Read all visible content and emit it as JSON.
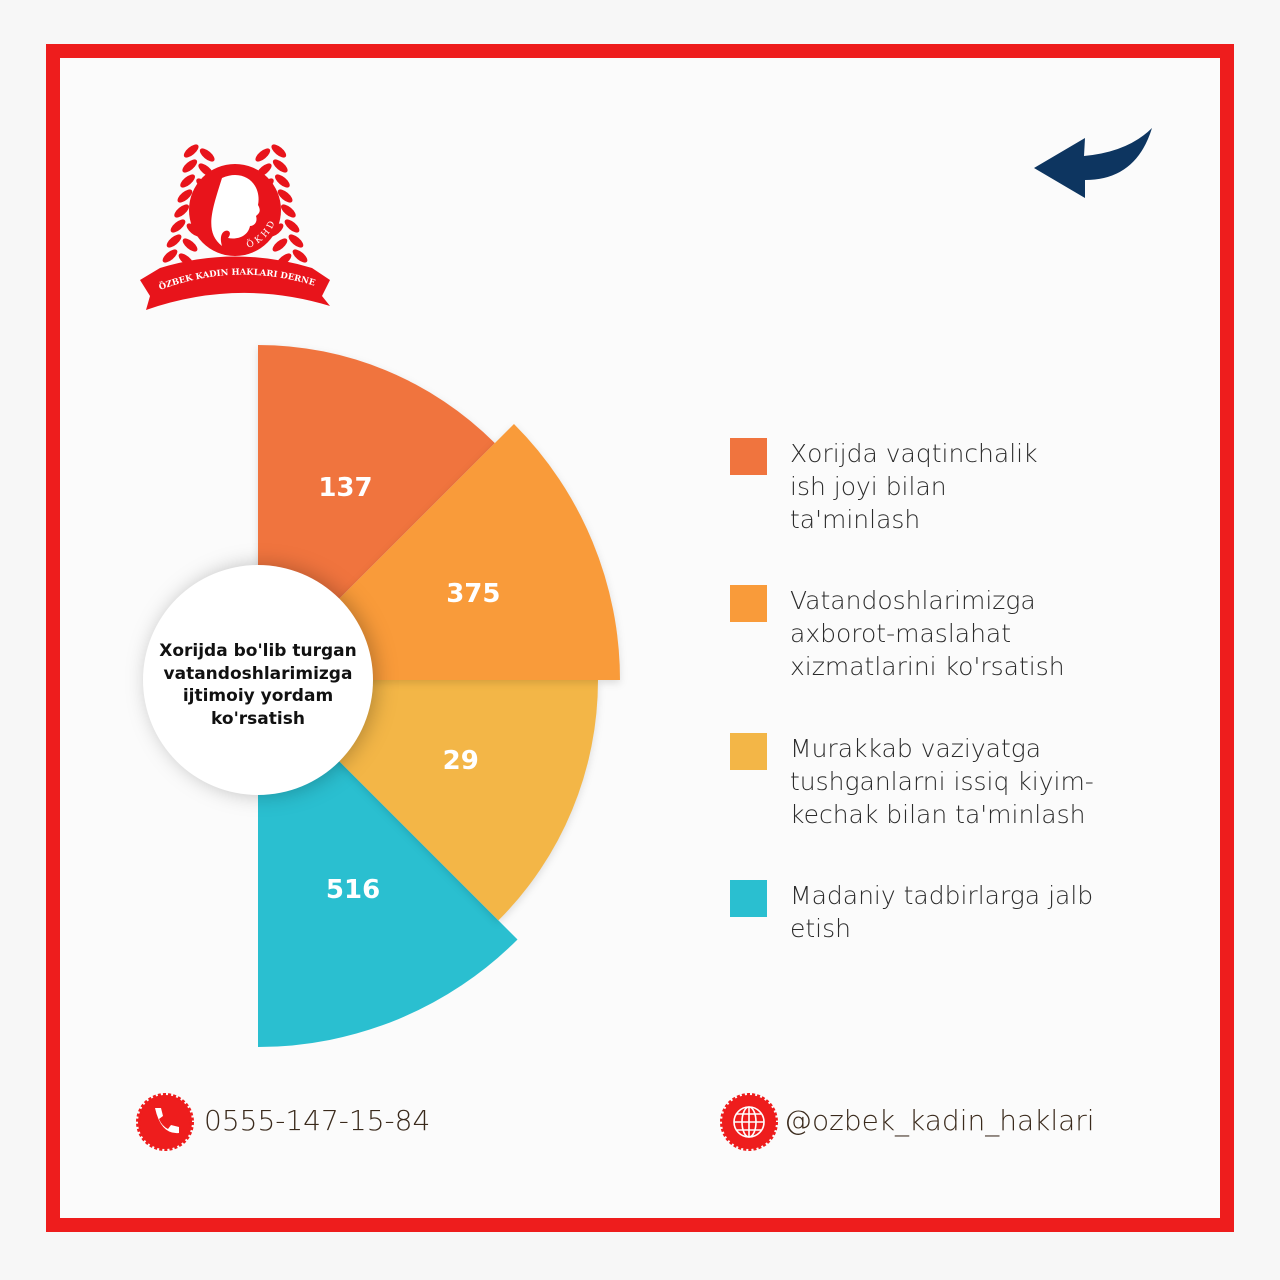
{
  "logo": {
    "text_ring": "ÖKHD",
    "banner": "ÖZBEK KADIN HAKLARI DERNEĞİ"
  },
  "colors": {
    "border": "#ee1d1d",
    "arrow": "#0d3560",
    "logo": "#e8141b"
  },
  "icons": {
    "arrow": "curved-arrow-left-icon",
    "phone": "phone-icon",
    "web": "globe-icon"
  },
  "chart_data": {
    "type": "pie",
    "center_label": "Xorijda bo'lib turgan vatandoshlarimizga ijtimoiy yordam ko'rsatish",
    "categories": [
      "Xorijda vaqtinchalik ish joyi bilan ta'minlash",
      "Vatandoshlarimizga axborot-maslahat xizmatlarini ko'rsatish",
      "Murakkab vaziyatga tushganlarni issiq kiyim-kechak bilan ta'minlash",
      "Madaniy tadbirlarga jalb etish"
    ],
    "legend_lines": [
      "Xorijda vaqtinchalik\nish joyi bilan\nta'minlash",
      "Vatandoshlarimizga\naxborot-maslahat\nxizmatlarini ko'rsatish",
      "Murakkab vaziyatga\ntushganlarni issiq kiyim-\nkechak bilan ta'minlash",
      "Madaniy tadbirlarga jalb\netish"
    ],
    "values": [
      137,
      375,
      29,
      516
    ],
    "value_labels": [
      "137",
      "375",
      "29",
      "516"
    ],
    "colors": [
      "#f0743e",
      "#f99b3a",
      "#f3b647",
      "#2abfd0"
    ],
    "legend_position": "right"
  },
  "contacts": {
    "phone": "0555-147-15-84",
    "social": "@ozbek_kadin_haklari"
  }
}
